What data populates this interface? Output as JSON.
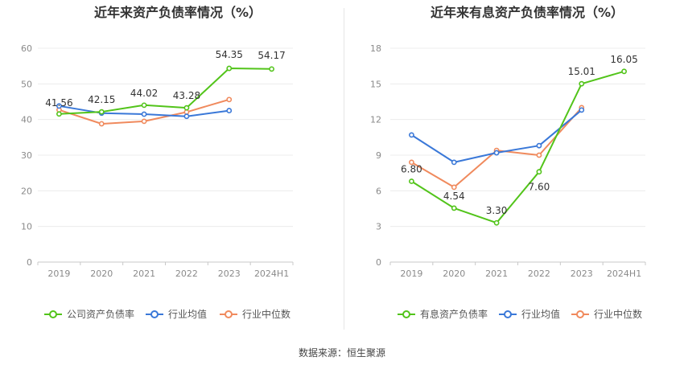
{
  "source": "数据来源：恒生聚源",
  "chart_data": [
    {
      "type": "line",
      "title": "近年来资产负债率情况（%）",
      "categories": [
        "2019",
        "2020",
        "2021",
        "2022",
        "2023",
        "2024H1"
      ],
      "ylim": [
        0,
        60
      ],
      "yticks": [
        0,
        10,
        20,
        30,
        40,
        50,
        60
      ],
      "grid": true,
      "legend_position": "bottom",
      "series": [
        {
          "name": "公司资产负债率",
          "color": "#52c41a",
          "values": [
            41.56,
            42.15,
            44.02,
            43.28,
            54.35,
            54.17
          ],
          "labels": [
            "41.56",
            "42.15",
            "44.02",
            "43.28",
            "54.35",
            "54.17"
          ]
        },
        {
          "name": "行业均值",
          "color": "#3a78d8",
          "values": [
            43.8,
            41.8,
            41.5,
            40.9,
            42.5,
            null
          ]
        },
        {
          "name": "行业中位数",
          "color": "#f08a5d",
          "values": [
            42.7,
            38.8,
            39.5,
            42.1,
            45.6,
            null
          ]
        }
      ]
    },
    {
      "type": "line",
      "title": "近年来有息资产负债率情况（%）",
      "categories": [
        "2019",
        "2020",
        "2021",
        "2022",
        "2023",
        "2024H1"
      ],
      "ylim": [
        0,
        18
      ],
      "yticks": [
        0,
        3,
        6,
        9,
        12,
        15,
        18
      ],
      "grid": true,
      "legend_position": "bottom",
      "series": [
        {
          "name": "有息资产负债率",
          "color": "#52c41a",
          "values": [
            6.8,
            4.54,
            3.3,
            7.6,
            15.01,
            16.05
          ],
          "labels": [
            "6.80",
            "4.54",
            "3.30",
            "7.60",
            "15.01",
            "16.05"
          ]
        },
        {
          "name": "行业均值",
          "color": "#3a78d8",
          "values": [
            10.7,
            8.4,
            9.2,
            9.8,
            12.8,
            null
          ]
        },
        {
          "name": "行业中位数",
          "color": "#f08a5d",
          "values": [
            8.4,
            6.3,
            9.4,
            9.0,
            13.0,
            null
          ]
        }
      ]
    }
  ]
}
